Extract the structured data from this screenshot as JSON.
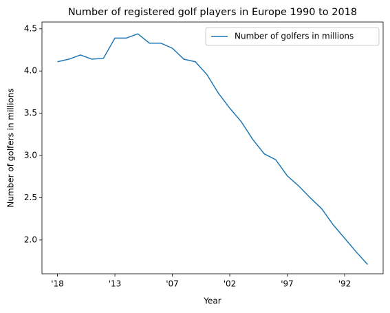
{
  "chart_data": {
    "type": "line",
    "title": "Number of registered golf players in Europe 1990 to 2018",
    "xlabel": "Year",
    "ylabel": "Number of golfers in millions",
    "categories": [
      "'18",
      null,
      null,
      null,
      null,
      "'13",
      null,
      null,
      null,
      null,
      "'07",
      null,
      null,
      null,
      null,
      "'02",
      null,
      null,
      null,
      null,
      "'97",
      null,
      null,
      null,
      null,
      "'92",
      null,
      null
    ],
    "series": [
      {
        "name": "Number of golfers in millions",
        "color": "#1f77b4",
        "values": [
          4.11,
          4.14,
          4.19,
          4.14,
          4.15,
          4.39,
          4.39,
          4.44,
          4.33,
          4.33,
          4.27,
          4.14,
          4.11,
          3.96,
          3.74,
          3.56,
          3.4,
          3.19,
          3.02,
          2.95,
          2.76,
          2.64,
          2.5,
          2.37,
          2.18,
          2.02,
          1.86,
          1.71
        ]
      }
    ],
    "ylim": [
      1.6,
      4.58
    ],
    "yticks": [
      {
        "value": 2,
        "label": "2.0"
      },
      2.5,
      {
        "value": 3,
        "label": "3.0"
      },
      3.5,
      {
        "value": 4,
        "label": "4.0"
      },
      4.5
    ],
    "legend": "upper right",
    "grid": false
  }
}
